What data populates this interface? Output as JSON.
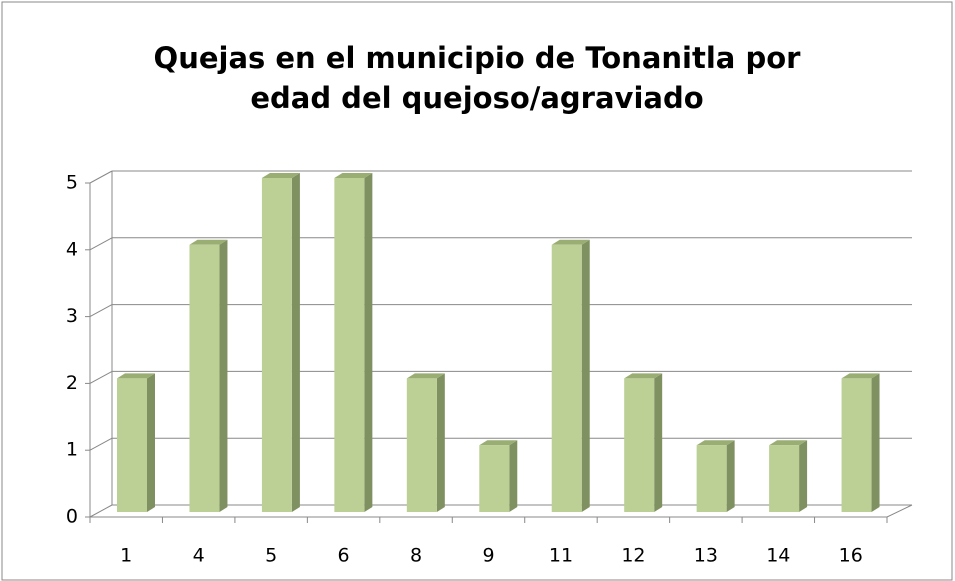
{
  "chart_data": {
    "type": "bar",
    "title": "Quejas en el municipio de Tonanitla por edad del quejoso/agraviado",
    "categories": [
      "1",
      "4",
      "5",
      "6",
      "8",
      "9",
      "11",
      "12",
      "13",
      "14",
      "16"
    ],
    "values": [
      2,
      4,
      5,
      5,
      2,
      1,
      4,
      2,
      1,
      1,
      2
    ],
    "color": "#bcd096",
    "ylim": [
      0,
      5
    ],
    "yticks": [
      0,
      1,
      2,
      3,
      4,
      5
    ],
    "grid": true
  }
}
